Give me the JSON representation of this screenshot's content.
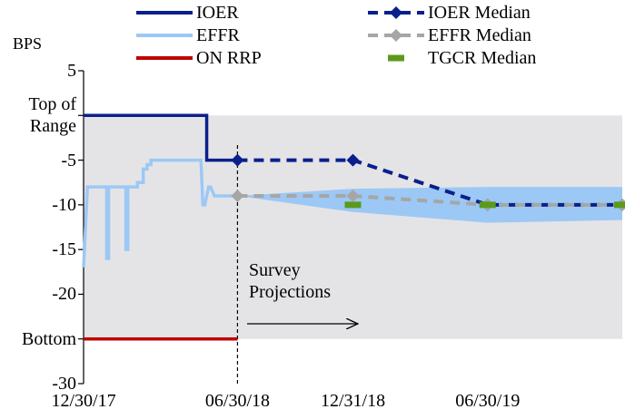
{
  "chart_data": {
    "type": "line",
    "y_label": "BPS",
    "ylim": [
      -30,
      5
    ],
    "yticks": [
      5,
      {
        "value": 0,
        "label": "Top of Range"
      },
      -5,
      -10,
      -15,
      -20,
      {
        "value": -25,
        "label": "Bottom"
      },
      -30
    ],
    "xlim": [
      0,
      28
    ],
    "xticks": [
      {
        "value": 0,
        "label": "12/30/17"
      },
      {
        "value": 8,
        "label": "06/30/18"
      },
      {
        "value": 14,
        "label": "12/31/18"
      },
      {
        "value": 21,
        "label": "06/30/19"
      }
    ],
    "shaded_range": [
      -25,
      0
    ],
    "shade_color": "#e4e4e6",
    "divider_x": 8,
    "annotation": "Survey Projections",
    "band": {
      "x": [
        8,
        14,
        21,
        28
      ],
      "lower": [
        -9,
        -10.8,
        -12,
        -11.7
      ],
      "upper": [
        -9,
        -8.2,
        -8,
        -8
      ],
      "color": "#9cc8f5"
    },
    "series": [
      {
        "name": "IOER",
        "color": "#0b1f8c",
        "dash": false,
        "marker": null,
        "x": [
          0,
          6.4,
          6.4,
          8
        ],
        "values": [
          0,
          0,
          -5,
          -5
        ]
      },
      {
        "name": "EFFR",
        "color": "#9cc8f5",
        "dash": false,
        "marker": null,
        "x": [
          0,
          0.2,
          0.2,
          1.2,
          1.2,
          1.3,
          1.3,
          2.2,
          2.2,
          2.3,
          2.3,
          2.8,
          2.8,
          3.1,
          3.1,
          3.3,
          3.3,
          3.5,
          3.5,
          4.2,
          4.2,
          6.1,
          6.2,
          6.3,
          6.5,
          6.6,
          6.8,
          8
        ],
        "values": [
          -17,
          -8,
          -8,
          -8,
          -16,
          -16,
          -8,
          -8,
          -15,
          -15,
          -8,
          -8,
          -7.5,
          -7.5,
          -6,
          -6,
          -5.5,
          -5.5,
          -5,
          -5,
          -5,
          -5,
          -10,
          -10,
          -8,
          -8,
          -9,
          -9
        ]
      },
      {
        "name": "ON RRP",
        "color": "#c00000",
        "dash": false,
        "marker": null,
        "x": [
          0,
          8
        ],
        "values": [
          -25,
          -25
        ]
      },
      {
        "name": "IOER Median",
        "color": "#0b1f8c",
        "dash": true,
        "marker": "diamond",
        "x": [
          8,
          14,
          21,
          28
        ],
        "values": [
          -5,
          -5,
          -10,
          -10
        ]
      },
      {
        "name": "EFFR Median",
        "color": "#a6a6a6",
        "dash": true,
        "marker": "diamond",
        "x": [
          8,
          14,
          21,
          28
        ],
        "values": [
          -9,
          -9,
          -10,
          -10
        ]
      },
      {
        "name": "TGCR Median",
        "color": "#5b9a1a",
        "dash": false,
        "marker": "bar",
        "line": false,
        "x": [
          14,
          21,
          28
        ],
        "values": [
          -10,
          -10,
          -10
        ]
      }
    ]
  }
}
